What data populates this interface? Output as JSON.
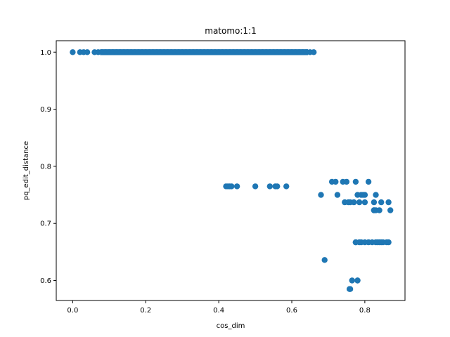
{
  "chart_data": {
    "type": "scatter",
    "title": "matomo:1:1",
    "xlabel": "cos_dim",
    "ylabel": "pq_edit_distance",
    "xlim": [
      -0.045,
      0.91
    ],
    "ylim": [
      0.565,
      1.02
    ],
    "xticks": [
      0.0,
      0.2,
      0.4,
      0.6,
      0.8
    ],
    "xtick_labels": [
      "0.0",
      "0.2",
      "0.4",
      "0.6",
      "0.8"
    ],
    "yticks": [
      0.6,
      0.7,
      0.8,
      0.9,
      1.0
    ],
    "ytick_labels": [
      "0.6",
      "0.7",
      "0.8",
      "0.9",
      "1.0"
    ],
    "grid": false,
    "marker_color": "#1f77b4",
    "series": [
      {
        "x": [
          0.0,
          0.02,
          0.03,
          0.04,
          0.06,
          0.07,
          0.08,
          0.09,
          0.1,
          0.11,
          0.12,
          0.13,
          0.14,
          0.15,
          0.16,
          0.17,
          0.18,
          0.19,
          0.2,
          0.21,
          0.22,
          0.23,
          0.24,
          0.25,
          0.26,
          0.27,
          0.28,
          0.29,
          0.3,
          0.31,
          0.32,
          0.33,
          0.34,
          0.35,
          0.36,
          0.37,
          0.38,
          0.39,
          0.4,
          0.41,
          0.42,
          0.43,
          0.44,
          0.45,
          0.46,
          0.47,
          0.48,
          0.49,
          0.5,
          0.51,
          0.52,
          0.53,
          0.54,
          0.55,
          0.56,
          0.57,
          0.58,
          0.59,
          0.6,
          0.61,
          0.62,
          0.63,
          0.64,
          0.65,
          0.66,
          0.42,
          0.425,
          0.43,
          0.435,
          0.45,
          0.5,
          0.54,
          0.555,
          0.56,
          0.585,
          0.68,
          0.69,
          0.71,
          0.72,
          0.725,
          0.74,
          0.745,
          0.75,
          0.755,
          0.76,
          0.77,
          0.775,
          0.78,
          0.785,
          0.79,
          0.795,
          0.8,
          0.81,
          0.825,
          0.83,
          0.765,
          0.775,
          0.78,
          0.79,
          0.8,
          0.825,
          0.845,
          0.865,
          0.775,
          0.785,
          0.8,
          0.81,
          0.82,
          0.83,
          0.835,
          0.84,
          0.845,
          0.85,
          0.86,
          0.865,
          0.825,
          0.83,
          0.84,
          0.87,
          0.76,
          0.78,
          0.758
        ],
        "y": [
          1.0,
          1.0,
          1.0,
          1.0,
          1.0,
          1.0,
          1.0,
          1.0,
          1.0,
          1.0,
          1.0,
          1.0,
          1.0,
          1.0,
          1.0,
          1.0,
          1.0,
          1.0,
          1.0,
          1.0,
          1.0,
          1.0,
          1.0,
          1.0,
          1.0,
          1.0,
          1.0,
          1.0,
          1.0,
          1.0,
          1.0,
          1.0,
          1.0,
          1.0,
          1.0,
          1.0,
          1.0,
          1.0,
          1.0,
          1.0,
          1.0,
          1.0,
          1.0,
          1.0,
          1.0,
          1.0,
          1.0,
          1.0,
          1.0,
          1.0,
          1.0,
          1.0,
          1.0,
          1.0,
          1.0,
          1.0,
          1.0,
          1.0,
          1.0,
          1.0,
          1.0,
          1.0,
          1.0,
          1.0,
          1.0,
          0.765,
          0.765,
          0.765,
          0.765,
          0.765,
          0.765,
          0.765,
          0.765,
          0.765,
          0.765,
          0.75,
          0.636,
          0.773,
          0.773,
          0.75,
          0.773,
          0.737,
          0.773,
          0.737,
          0.737,
          0.737,
          0.773,
          0.75,
          0.737,
          0.75,
          0.75,
          0.737,
          0.773,
          0.737,
          0.75,
          0.6,
          0.667,
          0.6,
          0.667,
          0.75,
          0.723,
          0.737,
          0.737,
          0.667,
          0.667,
          0.667,
          0.667,
          0.667,
          0.667,
          0.667,
          0.667,
          0.667,
          0.667,
          0.667,
          0.667,
          0.723,
          0.723,
          0.723,
          0.723,
          0.585,
          0.6,
          0.585
        ]
      }
    ]
  }
}
